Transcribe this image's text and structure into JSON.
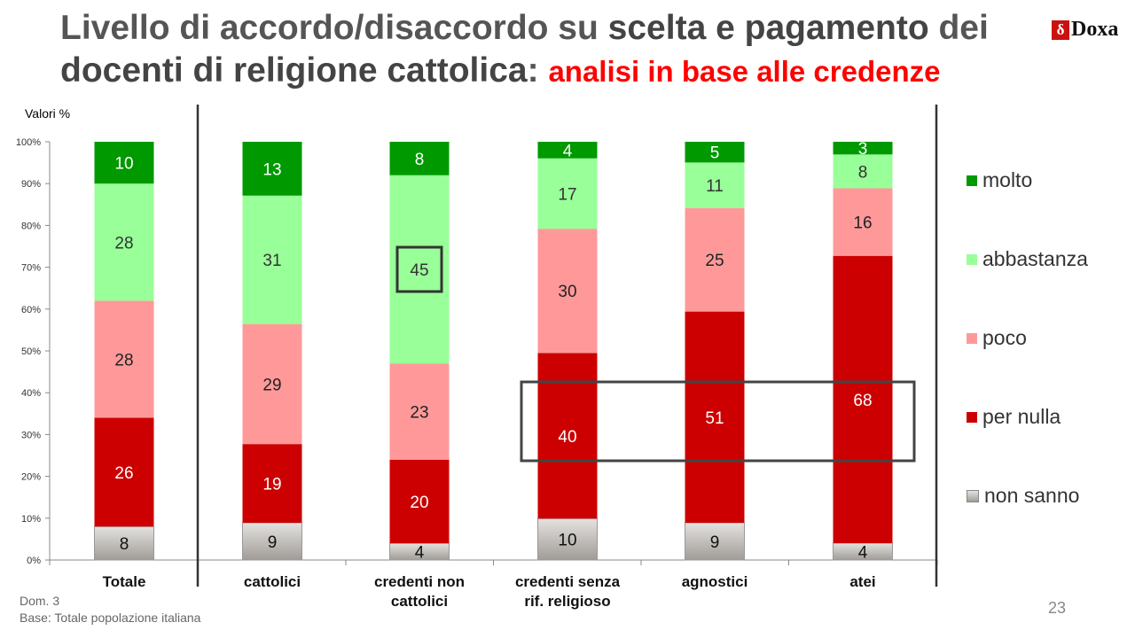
{
  "slide": {
    "title_part1": "Livello di accordo/disaccordo su ",
    "title_bold1": "scelta e pagamento",
    "title_part2": " dei",
    "title_bold2": "docenti di religione cattolica",
    "title_colon": ": ",
    "title_red": "analisi in base alle credenze",
    "logo_mark": "δ",
    "logo_text": "Doxa",
    "values_label": "Valori %",
    "footer_line1": "Dom. 3",
    "footer_line2": "Base: Totale popolazione italiana",
    "page_number": "23"
  },
  "chart_data": {
    "type": "bar",
    "stacked": true,
    "categories": [
      "Totale",
      "cattolici",
      "credenti non cattolici",
      "credenti senza rif. religioso",
      "agnostici",
      "atei"
    ],
    "category_labels": [
      [
        "Totale"
      ],
      [
        "cattolici"
      ],
      [
        "credenti non",
        "cattolici"
      ],
      [
        "credenti senza",
        "rif. religioso"
      ],
      [
        "agnostici"
      ],
      [
        "atei"
      ]
    ],
    "series": [
      {
        "name": "non sanno",
        "values": [
          8,
          9,
          4,
          10,
          9,
          4
        ],
        "color": "#b8b4b0"
      },
      {
        "name": "per nulla",
        "values": [
          26,
          19,
          20,
          40,
          51,
          68
        ],
        "color": "#cc0000"
      },
      {
        "name": "poco",
        "values": [
          28,
          29,
          23,
          30,
          25,
          16
        ],
        "color": "#ff9999"
      },
      {
        "name": "abbastanza",
        "values": [
          28,
          31,
          45,
          17,
          11,
          8
        ],
        "color": "#99ff99"
      },
      {
        "name": "molto",
        "values": [
          10,
          13,
          8,
          4,
          5,
          3
        ],
        "color": "#009900"
      }
    ],
    "legend_order": [
      "molto",
      "abbastanza",
      "poco",
      "per nulla",
      "non sanno"
    ],
    "legend_position": "right",
    "y_ticks": [
      "0%",
      "10%",
      "20%",
      "30%",
      "40%",
      "50%",
      "60%",
      "70%",
      "80%",
      "90%",
      "100%"
    ],
    "ylim": [
      0,
      100
    ],
    "grid": false,
    "highlights": [
      {
        "type": "value-box",
        "category": "credenti non cattolici",
        "series": "abbastanza"
      },
      {
        "type": "row-box",
        "series": "per nulla",
        "categories": [
          "credenti senza rif. religioso",
          "agnostici",
          "atei"
        ]
      }
    ]
  }
}
